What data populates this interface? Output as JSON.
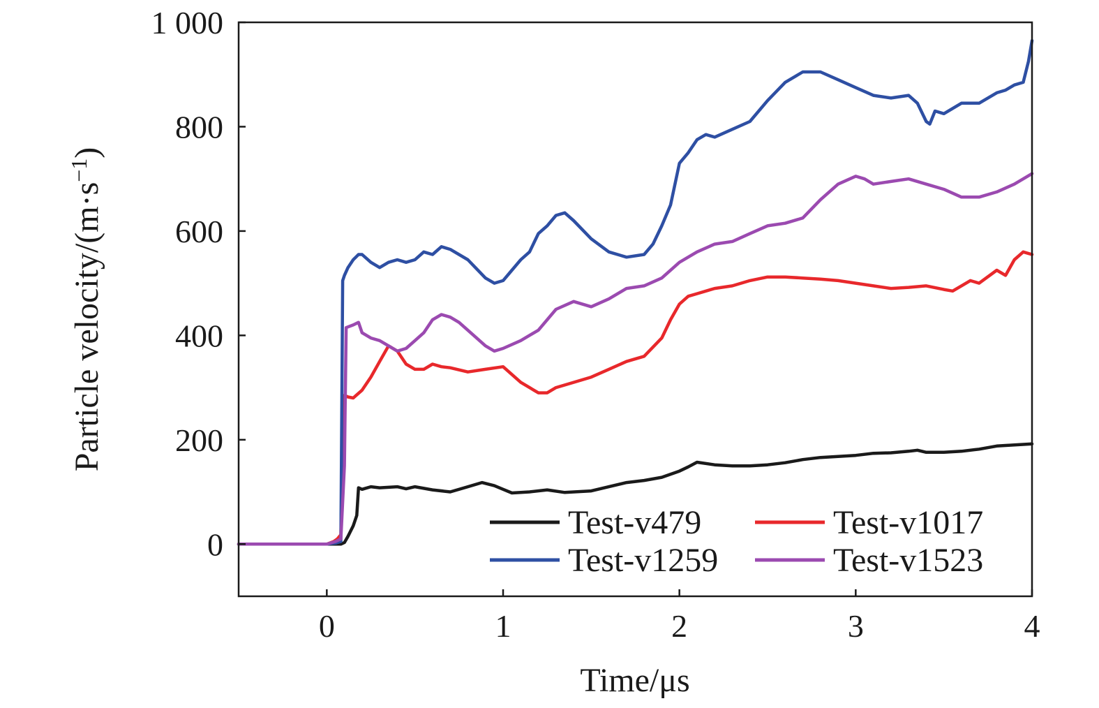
{
  "chart_data": {
    "type": "line",
    "xlabel": "Time/μs",
    "ylabel": "Particle velocity/(m·s",
    "ylabel_sup": "−1",
    "ylabel_close": ")",
    "xlim": [
      -0.5,
      4
    ],
    "ylim": [
      -100,
      1000
    ],
    "xticks": [
      0,
      1,
      2,
      3,
      4
    ],
    "xtick_labels": [
      "0",
      "1",
      "2",
      "3",
      "4"
    ],
    "yticks": [
      0,
      200,
      400,
      600,
      800,
      1000
    ],
    "ytick_labels": [
      "0",
      "200",
      "400",
      "600",
      "800",
      "1 000"
    ],
    "grid": false,
    "legend": "bottom-right",
    "series": [
      {
        "name": "Test-v479",
        "color": "#1a1a1a",
        "x": [
          -0.5,
          0.0,
          0.08,
          0.1,
          0.12,
          0.15,
          0.17,
          0.18,
          0.2,
          0.25,
          0.3,
          0.4,
          0.45,
          0.5,
          0.6,
          0.7,
          0.8,
          0.88,
          0.95,
          1.0,
          1.05,
          1.15,
          1.25,
          1.35,
          1.5,
          1.6,
          1.7,
          1.8,
          1.9,
          2.0,
          2.05,
          2.1,
          2.2,
          2.3,
          2.4,
          2.5,
          2.6,
          2.7,
          2.8,
          2.9,
          3.0,
          3.1,
          3.2,
          3.3,
          3.35,
          3.4,
          3.5,
          3.6,
          3.7,
          3.8,
          3.9,
          4.0
        ],
        "values": [
          0,
          0,
          0,
          3,
          15,
          35,
          55,
          108,
          105,
          110,
          108,
          110,
          106,
          110,
          104,
          100,
          110,
          118,
          112,
          105,
          98,
          100,
          104,
          99,
          102,
          110,
          118,
          122,
          128,
          140,
          148,
          157,
          152,
          150,
          150,
          152,
          156,
          162,
          166,
          168,
          170,
          174,
          175,
          178,
          180,
          176,
          176,
          178,
          182,
          188,
          190,
          192
        ]
      },
      {
        "name": "Test-v1017",
        "color": "#e8282b",
        "x": [
          -0.5,
          0.0,
          0.04,
          0.06,
          0.08,
          0.1,
          0.12,
          0.15,
          0.2,
          0.25,
          0.3,
          0.35,
          0.4,
          0.45,
          0.5,
          0.55,
          0.6,
          0.65,
          0.7,
          0.8,
          0.9,
          1.0,
          1.1,
          1.2,
          1.25,
          1.3,
          1.4,
          1.5,
          1.6,
          1.7,
          1.8,
          1.9,
          1.95,
          2.0,
          2.05,
          2.1,
          2.2,
          2.3,
          2.4,
          2.5,
          2.6,
          2.7,
          2.8,
          2.9,
          3.0,
          3.1,
          3.2,
          3.3,
          3.4,
          3.5,
          3.55,
          3.6,
          3.65,
          3.7,
          3.8,
          3.85,
          3.9,
          3.95,
          4.0
        ],
        "values": [
          0,
          0,
          5,
          10,
          18,
          285,
          282,
          280,
          295,
          320,
          350,
          380,
          370,
          345,
          335,
          335,
          345,
          340,
          338,
          330,
          335,
          340,
          310,
          290,
          290,
          300,
          310,
          320,
          335,
          350,
          360,
          395,
          430,
          460,
          475,
          480,
          490,
          495,
          505,
          512,
          512,
          510,
          508,
          505,
          500,
          495,
          490,
          492,
          495,
          488,
          485,
          495,
          505,
          500,
          525,
          515,
          545,
          560,
          555
        ]
      },
      {
        "name": "Test-v1259",
        "color": "#2e4fa3",
        "x": [
          -0.5,
          0.0,
          0.05,
          0.08,
          0.09,
          0.1,
          0.12,
          0.15,
          0.18,
          0.2,
          0.25,
          0.3,
          0.35,
          0.4,
          0.45,
          0.5,
          0.55,
          0.6,
          0.65,
          0.7,
          0.8,
          0.9,
          0.95,
          1.0,
          1.05,
          1.1,
          1.15,
          1.2,
          1.25,
          1.3,
          1.35,
          1.4,
          1.5,
          1.6,
          1.7,
          1.8,
          1.85,
          1.9,
          1.95,
          2.0,
          2.05,
          2.1,
          2.15,
          2.2,
          2.3,
          2.4,
          2.5,
          2.6,
          2.7,
          2.8,
          2.9,
          3.0,
          3.1,
          3.2,
          3.3,
          3.35,
          3.4,
          3.42,
          3.45,
          3.5,
          3.6,
          3.7,
          3.8,
          3.85,
          3.9,
          3.95,
          3.98,
          4.0
        ],
        "values": [
          0,
          0,
          2,
          5,
          505,
          515,
          530,
          545,
          555,
          555,
          540,
          530,
          540,
          545,
          540,
          545,
          560,
          555,
          570,
          565,
          545,
          510,
          500,
          505,
          525,
          545,
          560,
          595,
          610,
          630,
          635,
          620,
          585,
          560,
          550,
          555,
          575,
          610,
          650,
          730,
          750,
          775,
          785,
          780,
          795,
          810,
          850,
          885,
          905,
          905,
          890,
          875,
          860,
          855,
          860,
          845,
          810,
          805,
          830,
          825,
          845,
          845,
          865,
          870,
          880,
          885,
          925,
          965
        ]
      },
      {
        "name": "Test-v1523",
        "color": "#9b4ab0",
        "x": [
          -0.5,
          0.0,
          0.05,
          0.08,
          0.1,
          0.11,
          0.15,
          0.18,
          0.2,
          0.25,
          0.3,
          0.35,
          0.4,
          0.45,
          0.5,
          0.55,
          0.6,
          0.65,
          0.7,
          0.75,
          0.8,
          0.9,
          0.95,
          1.0,
          1.1,
          1.2,
          1.3,
          1.4,
          1.5,
          1.6,
          1.7,
          1.8,
          1.9,
          2.0,
          2.1,
          2.2,
          2.3,
          2.4,
          2.5,
          2.6,
          2.7,
          2.8,
          2.9,
          3.0,
          3.05,
          3.1,
          3.2,
          3.3,
          3.4,
          3.5,
          3.6,
          3.7,
          3.8,
          3.9,
          4.0
        ],
        "values": [
          0,
          0,
          5,
          10,
          150,
          415,
          420,
          425,
          405,
          395,
          390,
          380,
          370,
          375,
          390,
          405,
          430,
          440,
          435,
          425,
          410,
          380,
          370,
          375,
          390,
          410,
          450,
          465,
          455,
          470,
          490,
          495,
          510,
          540,
          560,
          575,
          580,
          595,
          610,
          615,
          625,
          660,
          690,
          705,
          700,
          690,
          695,
          700,
          690,
          680,
          665,
          665,
          675,
          690,
          710
        ]
      }
    ]
  }
}
